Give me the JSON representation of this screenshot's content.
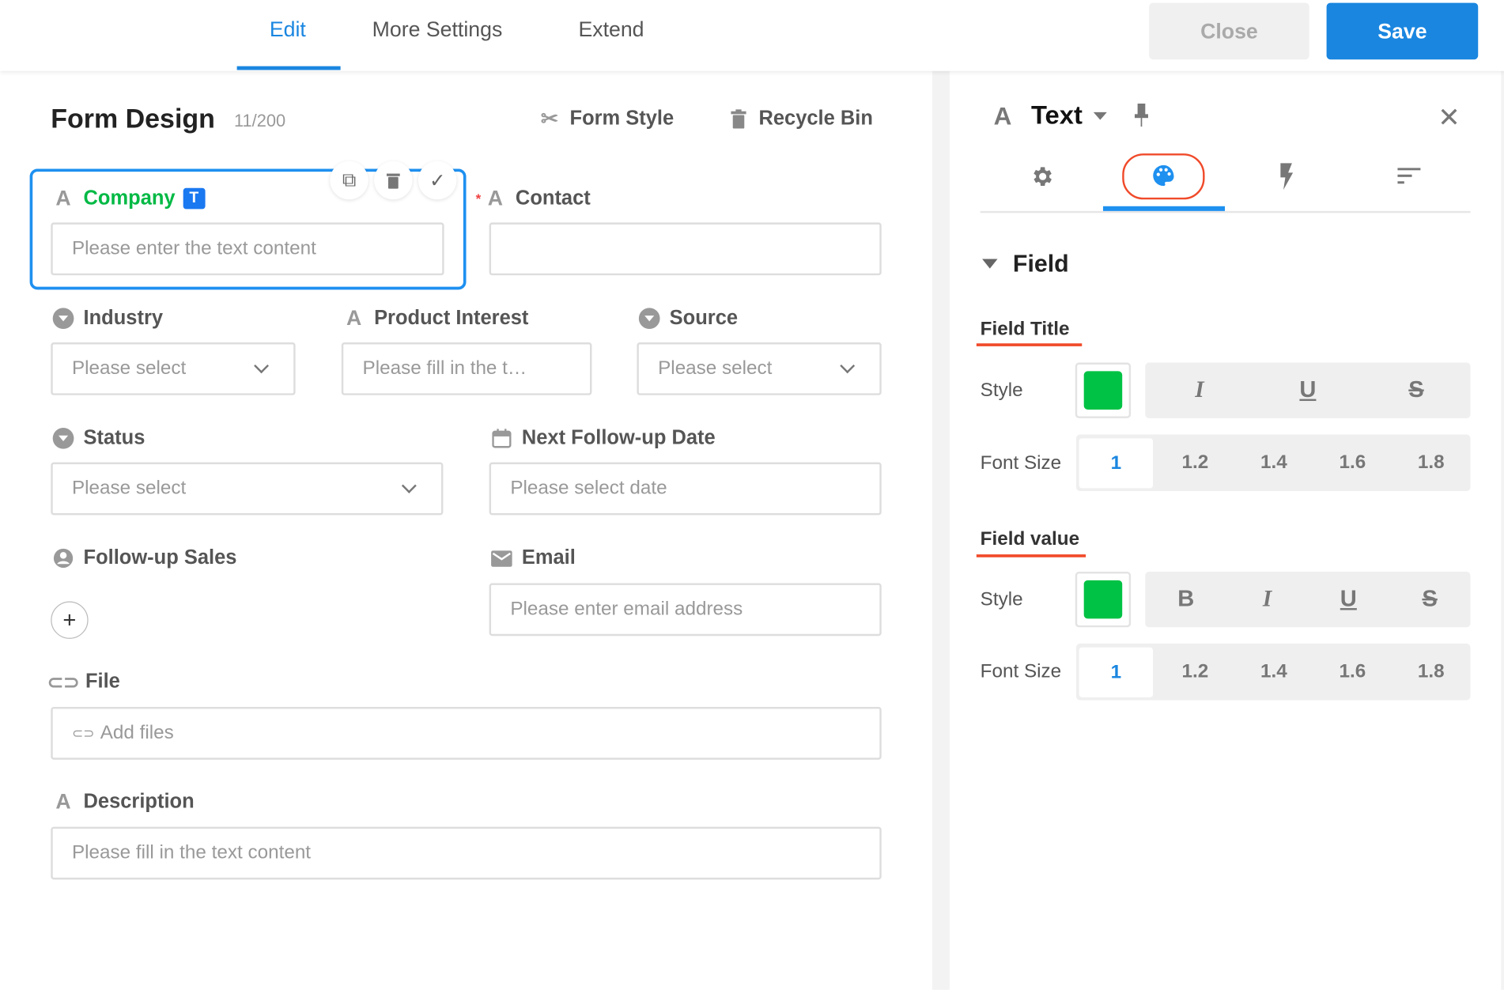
{
  "header": {
    "tabs": [
      {
        "label": "Edit",
        "active": true
      },
      {
        "label": "More Settings"
      },
      {
        "label": "Extend"
      }
    ],
    "close_label": "Close",
    "save_label": "Save",
    "accent": "#1a86e0"
  },
  "form": {
    "title": "Form Design",
    "count": "11/200",
    "form_style_label": "Form Style",
    "recycle_bin_label": "Recycle Bin",
    "fields": {
      "company": {
        "label": "Company",
        "badge": "T",
        "placeholder": "Please enter the text content",
        "label_color": "#00b944"
      },
      "contact": {
        "label": "Contact",
        "required_mark": "*",
        "value": ""
      },
      "industry": {
        "label": "Industry",
        "placeholder": "Please select"
      },
      "product_interest": {
        "label": "Product Interest",
        "placeholder": "Please fill in the t…"
      },
      "source": {
        "label": "Source",
        "placeholder": "Please select"
      },
      "status": {
        "label": "Status",
        "placeholder": "Please select"
      },
      "next_follow_up": {
        "label": "Next Follow-up Date",
        "placeholder": "Please select date"
      },
      "follow_up_sales": {
        "label": "Follow-up Sales",
        "add": "+"
      },
      "email": {
        "label": "Email",
        "placeholder": "Please enter email address"
      },
      "file": {
        "label": "File",
        "placeholder": "Add files"
      },
      "description": {
        "label": "Description",
        "placeholder": "Please fill in the text content"
      }
    }
  },
  "panel": {
    "type_icon": "A",
    "type_label": "Text",
    "tabs": [
      "gear-icon",
      "palette-icon",
      "bolt-icon",
      "sort-icon"
    ],
    "active_tab": 1,
    "section": "Field",
    "field_title": {
      "heading": "Field Title",
      "style_label": "Style",
      "color": "#00c244",
      "styles": [
        "I",
        "U",
        "S"
      ],
      "font_size_label": "Font Size",
      "sizes": [
        "1",
        "1.2",
        "1.4",
        "1.6",
        "1.8"
      ],
      "selected_size": "1"
    },
    "field_value": {
      "heading": "Field value",
      "style_label": "Style",
      "color": "#00c244",
      "styles": [
        "B",
        "I",
        "U",
        "S"
      ],
      "font_size_label": "Font Size",
      "sizes": [
        "1",
        "1.2",
        "1.4",
        "1.6",
        "1.8"
      ],
      "selected_size": "1"
    }
  }
}
